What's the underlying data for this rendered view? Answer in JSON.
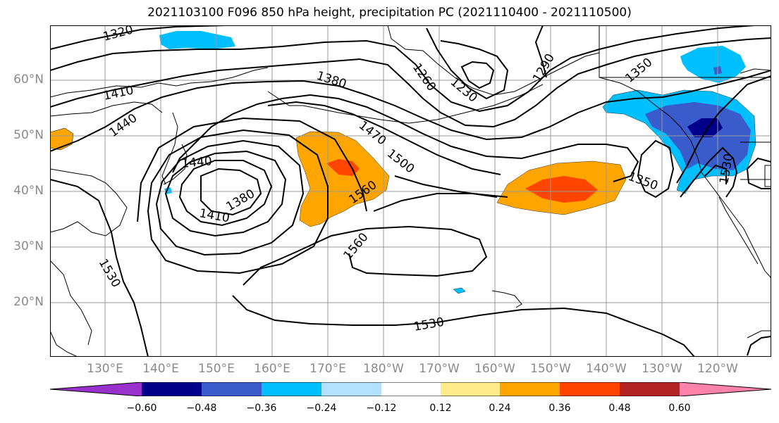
{
  "title": "2021103100 F096 850 hPa height, precipitation PC (2021110400 - 2021110500)",
  "lat_labels": [
    "60°N",
    "50°N",
    "40°N",
    "30°N",
    "20°N"
  ],
  "lon_labels": [
    "130°E",
    "140°E",
    "150°E",
    "160°E",
    "170°E",
    "180°W",
    "170°W",
    "160°W",
    "150°W",
    "140°W",
    "130°W",
    "120°W"
  ],
  "contour_labels": [
    "1320",
    "1380",
    "1410",
    "1440",
    "1260",
    "1230",
    "1290",
    "1350",
    "1470",
    "1500",
    "1440",
    "1380",
    "1410",
    "1560",
    "1350",
    "1530",
    "1560",
    "1530",
    "1530"
  ],
  "colorbar": {
    "ticks": [
      "−0.60",
      "−0.48",
      "−0.36",
      "−0.24",
      "−0.12",
      "0.12",
      "0.24",
      "0.36",
      "0.48",
      "0.60"
    ],
    "colors": [
      "#9932cc",
      "#00008b",
      "#3a5bcc",
      "#00bfff",
      "#b2e2ff",
      "#ffffff",
      "#ffeb8a",
      "#ffa500",
      "#ff4500",
      "#b22222",
      "#ff82ab"
    ]
  }
}
